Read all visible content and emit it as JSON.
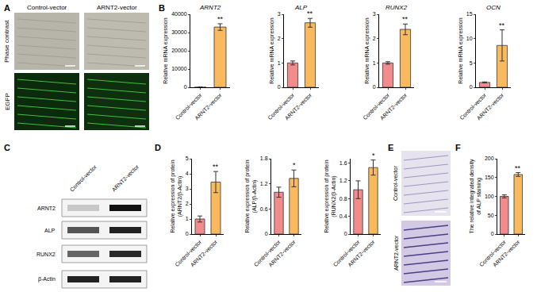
{
  "panel_labels": [
    "A",
    "B",
    "C",
    "D",
    "E",
    "F"
  ],
  "panel_a": {
    "columns": [
      "Control-vector",
      "ARNT2-vector"
    ],
    "rows": [
      "Phase contrast",
      "EGFP"
    ]
  },
  "panel_c": {
    "columns": [
      "Control-vector",
      "ARNT2-vector"
    ],
    "rows": [
      "ARNT2",
      "ALP",
      "RUNX2",
      "β-Actin"
    ]
  },
  "panel_e": {
    "rows": [
      "Control-vector",
      "ARNT2-vector"
    ]
  },
  "chart_data": [
    {
      "type": "bar",
      "title": "ARNT2",
      "y_label": "Relative mRNA expression",
      "categories": [
        "Control-vector",
        "ARNT2-vector"
      ],
      "values": [
        1,
        33000
      ],
      "errors": [
        150,
        1800
      ],
      "colors": [
        "#f28b8b",
        "#f9b95f"
      ],
      "ylim": [
        0,
        40000
      ],
      "yticks": [
        0,
        10000,
        20000,
        30000,
        40000
      ],
      "annotations": [
        {
          "category": "ARNT2-vector",
          "text": "**"
        }
      ]
    },
    {
      "type": "bar",
      "title": "ALP",
      "y_label": "Relative mRNA expression",
      "categories": [
        "Control-vector",
        "ARNT2-vector"
      ],
      "values": [
        1.0,
        2.65
      ],
      "errors": [
        0.08,
        0.18
      ],
      "colors": [
        "#f28b8b",
        "#f9b95f"
      ],
      "ylim": [
        0,
        3
      ],
      "yticks": [
        0,
        1,
        2,
        3
      ],
      "annotations": [
        {
          "category": "ARNT2-vector",
          "text": "**"
        }
      ]
    },
    {
      "type": "bar",
      "title": "RUNX2",
      "y_label": "Relative mRNA expression",
      "categories": [
        "Control-vector",
        "ARNT2-vector"
      ],
      "values": [
        1.0,
        2.38
      ],
      "errors": [
        0.05,
        0.22
      ],
      "colors": [
        "#f28b8b",
        "#f9b95f"
      ],
      "ylim": [
        0,
        3
      ],
      "yticks": [
        0,
        1,
        2,
        3
      ],
      "annotations": [
        {
          "category": "ARNT2-vector",
          "text": "**"
        }
      ]
    },
    {
      "type": "bar",
      "title": "OCN",
      "y_label": "Relative mRNA expression",
      "categories": [
        "Control-vector",
        "ARNT2-vector"
      ],
      "values": [
        1.0,
        8.6
      ],
      "errors": [
        0.1,
        3.2
      ],
      "colors": [
        "#f28b8b",
        "#f9b95f"
      ],
      "ylim": [
        0,
        15
      ],
      "yticks": [
        0,
        5,
        10,
        15
      ],
      "annotations": [
        {
          "category": "ARNT2-vector",
          "text": "**"
        }
      ]
    },
    {
      "type": "bar",
      "y_label": "Relative expression of protein\n(ARNT2/β-Actin)",
      "categories": [
        "Control-vector",
        "ARNT2-vector"
      ],
      "values": [
        1.0,
        3.45
      ],
      "errors": [
        0.2,
        0.7
      ],
      "colors": [
        "#f28b8b",
        "#f9b95f"
      ],
      "ylim": [
        0,
        5
      ],
      "yticks": [
        0,
        1,
        2,
        3,
        4,
        5
      ],
      "annotations": [
        {
          "category": "ARNT2-vector",
          "text": "**"
        }
      ]
    },
    {
      "type": "bar",
      "y_label": "Relative expression of protein\n(ALP/β-Actin)",
      "categories": [
        "Control-vector",
        "ARNT2-vector"
      ],
      "values": [
        1.0,
        1.33
      ],
      "errors": [
        0.12,
        0.2
      ],
      "colors": [
        "#f28b8b",
        "#f9b95f"
      ],
      "ylim": [
        0,
        1.8
      ],
      "yticks": [
        0,
        0.6,
        1.2,
        1.8
      ],
      "annotations": [
        {
          "category": "ARNT2-vector",
          "text": "*"
        }
      ]
    },
    {
      "type": "bar",
      "y_label": "Relative expression of protein\n(RUNX2/β-Actin)",
      "categories": [
        "Control-vector",
        "ARNT2-vector"
      ],
      "values": [
        1.0,
        1.5
      ],
      "errors": [
        0.2,
        0.17
      ],
      "colors": [
        "#f28b8b",
        "#f9b95f"
      ],
      "ylim": [
        0,
        1.7
      ],
      "yticks": [
        0,
        0.4,
        0.8,
        1.2,
        1.6
      ],
      "annotations": [
        {
          "category": "ARNT2-vector",
          "text": "*"
        }
      ]
    },
    {
      "type": "bar",
      "y_label": "The relative integrated density\nof ALP staining",
      "categories": [
        "Control-vector",
        "ARNT2-vector"
      ],
      "values": [
        100,
        158
      ],
      "errors": [
        4,
        5
      ],
      "colors": [
        "#f28b8b",
        "#f9b95f"
      ],
      "ylim": [
        0,
        200
      ],
      "yticks": [
        0,
        50,
        100,
        150,
        200
      ],
      "annotations": [
        {
          "category": "ARNT2-vector",
          "text": "**"
        }
      ]
    }
  ]
}
